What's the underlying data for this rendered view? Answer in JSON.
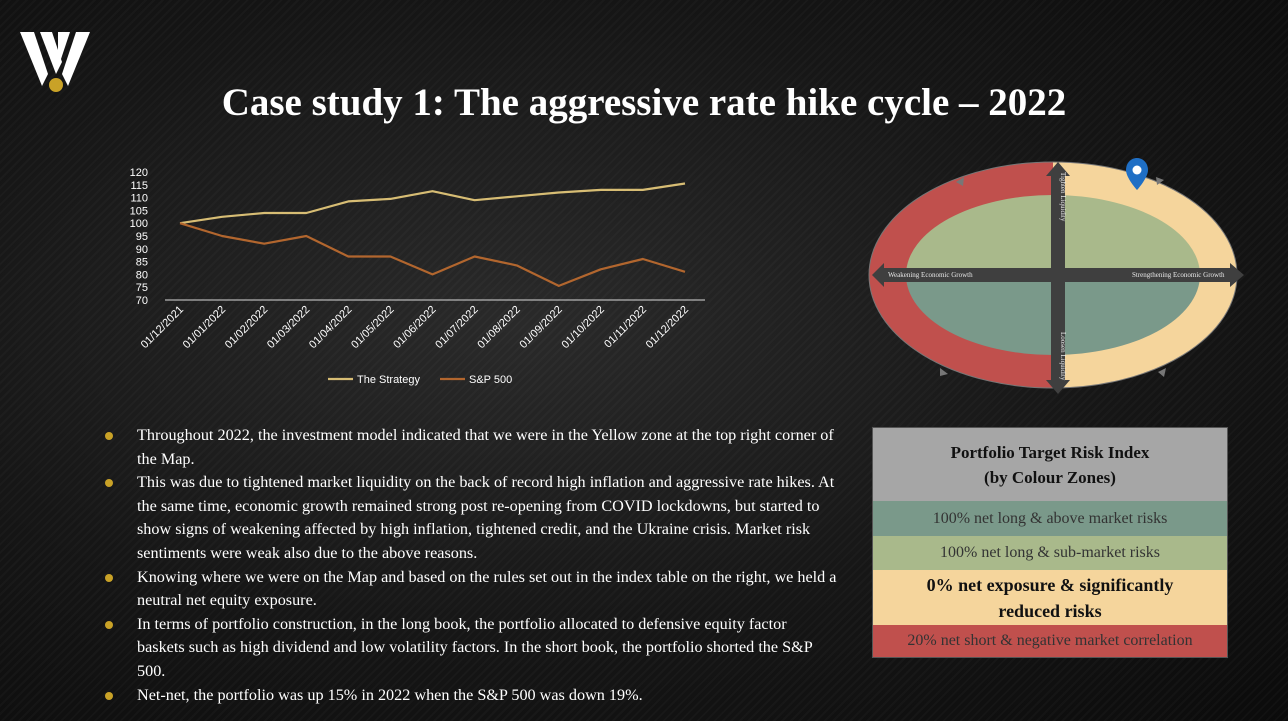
{
  "page": {
    "title": "Case study 1: The aggressive rate hike cycle – 2022"
  },
  "colors": {
    "strategy": "#d7bd74",
    "sp500": "#b2662e",
    "zone_green_dark": "#7a998a",
    "zone_green_light": "#a9b98b",
    "zone_yellow": "#f5d59c",
    "zone_red": "#c0504d",
    "bullet": "#c9a227",
    "location_pin": "#1f6fc5"
  },
  "logo": {
    "icon": "w-logo-icon"
  },
  "chart_data": {
    "type": "line",
    "title": "",
    "xlabel": "",
    "ylabel": "",
    "categories": [
      "01/12/2021",
      "01/01/2022",
      "01/02/2022",
      "01/03/2022",
      "01/04/2022",
      "01/05/2022",
      "01/06/2022",
      "01/07/2022",
      "01/08/2022",
      "01/09/2022",
      "01/10/2022",
      "01/11/2022",
      "01/12/2022"
    ],
    "yticks": [
      70,
      75,
      80,
      85,
      90,
      95,
      100,
      105,
      110,
      115,
      120
    ],
    "ylim": [
      70,
      120
    ],
    "legend_position": "bottom",
    "series": [
      {
        "name": "The Strategy",
        "values": [
          100,
          102.5,
          104,
          104,
          108.5,
          109.5,
          112.5,
          109,
          110.5,
          112,
          113,
          113,
          115.5
        ]
      },
      {
        "name": "S&P 500",
        "values": [
          100,
          95,
          92,
          95,
          87,
          87,
          80,
          87,
          83.5,
          75.5,
          82,
          86,
          81
        ]
      }
    ]
  },
  "map": {
    "top_label": "Tighten Liquidity",
    "bottom_label": "Loosen Liquidity",
    "left_label": "Weakening Economic Growth",
    "right_label": "Strengthening Economic Growth",
    "pin_icon": "location-pin-icon"
  },
  "bullets": [
    "Throughout 2022, the investment model indicated that we were in the Yellow zone at the top right corner of the Map.",
    "This was due to tightened market liquidity on the back of record high inflation and aggressive rate hikes.  At the same time, economic growth remained strong post re-opening from COVID lockdowns, but started to show signs of weakening affected by high inflation, tightened credit, and the Ukraine crisis.  Market risk sentiments were weak also due to the above reasons.",
    "Knowing where we were on the Map and based on the rules set out in the index table on the right, we held a neutral net equity exposure.",
    "In terms of portfolio construction, in the long book, the portfolio allocated to defensive equity factor baskets such as high dividend and low volatility factors. In the short book, the portfolio shorted the S&P 500.",
    "Net-net, the portfolio was up 15% in 2022 when the S&P 500 was down 19%."
  ],
  "risk_table": {
    "title_line1": "Portfolio Target Risk Index",
    "title_line2": "(by Colour Zones)",
    "rows": [
      "100% net long & above market risks",
      "100% net long & sub-market risks",
      "0% net exposure & significantly reduced risks",
      "20% net short & negative market correlation"
    ]
  }
}
